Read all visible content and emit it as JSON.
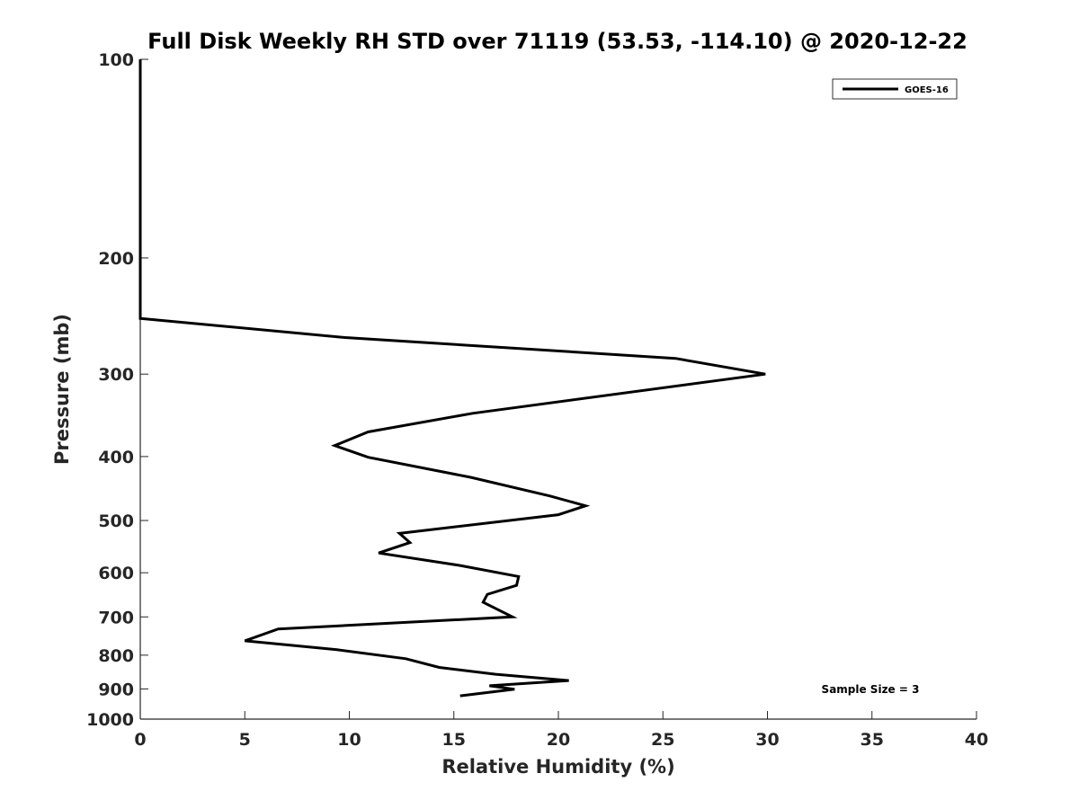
{
  "chart_data": {
    "type": "line",
    "title": "Full Disk Weekly RH STD over 71119 (53.53, -114.10) @ 2020-12-22",
    "xlabel": "Relative Humidity (%)",
    "ylabel": "Pressure (mb)",
    "xlim": [
      0,
      40
    ],
    "ylim": [
      100,
      1000
    ],
    "y_scale": "log",
    "y_inverted": true,
    "grid": false,
    "legend_position": "top-right",
    "x_ticks": [
      "0",
      "5",
      "10",
      "15",
      "20",
      "25",
      "30",
      "35",
      "40"
    ],
    "y_ticks": [
      "100",
      "200",
      "300",
      "400",
      "500",
      "600",
      "700",
      "800",
      "900",
      "1000"
    ],
    "annotation": "Sample Size = 3",
    "series": [
      {
        "name": "GOES-16",
        "color": "#000000",
        "x": [
          0,
          0,
          0,
          0,
          0,
          9.8,
          25.6,
          29.9,
          15.9,
          10.9,
          9.3,
          10.9,
          15.8,
          19.6,
          21.3,
          20.0,
          12.4,
          12.9,
          11.4,
          15.3,
          18.1,
          18.0,
          16.6,
          16.4,
          17.8,
          6.6,
          5.0,
          9.4,
          12.7,
          14.3,
          17.0,
          20.5,
          16.7,
          17.9,
          15.3
        ],
        "y": [
          100,
          150,
          200,
          230,
          247,
          264,
          284,
          300,
          344,
          367,
          385,
          401,
          430,
          459,
          475,
          490,
          523,
          540,
          560,
          585,
          608,
          627,
          647,
          665,
          700,
          730,
          761,
          785,
          810,
          835,
          855,
          874,
          890,
          901,
          922
        ]
      }
    ]
  }
}
